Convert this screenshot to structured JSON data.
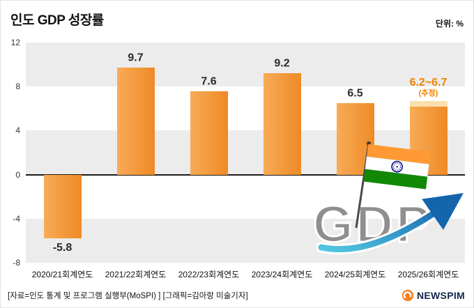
{
  "header": {
    "title": "인도 GDP 성장률",
    "unit_label": "단위: %"
  },
  "chart_data": {
    "type": "bar",
    "title": "인도 GDP 성장률",
    "unit": "%",
    "ylim": [
      -8,
      12
    ],
    "yticks": [
      12,
      8,
      4,
      0,
      -4,
      -8
    ],
    "grid": "horizontal-bands",
    "categories": [
      "2020/21회계연도",
      "2021/22회계연도",
      "2022/23회계연도",
      "2023/24회계연도",
      "2024/25회계연도",
      "2025/26회계연도"
    ],
    "bars": [
      {
        "category": "2020/21회계연도",
        "value": -5.8,
        "label": "-5.8"
      },
      {
        "category": "2021/22회계연도",
        "value": 9.7,
        "label": "9.7"
      },
      {
        "category": "2022/23회계연도",
        "value": 7.6,
        "label": "7.6"
      },
      {
        "category": "2023/24회계연도",
        "value": 9.2,
        "label": "9.2"
      },
      {
        "category": "2024/25회계연도",
        "value": 6.5,
        "label": "6.5"
      },
      {
        "category": "2025/26회계연도",
        "value": 6.2,
        "value_high": 6.7,
        "label": "6.2~6.7",
        "sublabel": "(추정)",
        "estimated": true
      }
    ]
  },
  "colors": {
    "bar_start": "#f8ab57",
    "bar_end": "#ee8a26",
    "bar_estimate": "#fbe0ae",
    "label": "#2b2b2b",
    "accent": "#ef8200",
    "stripe": "#ececec",
    "zero_line": "#1a1a1a",
    "flag_saffron": "#FF9933",
    "flag_green": "#128807",
    "flag_navy": "#000088",
    "arrow_start": "#53c6e0",
    "arrow_end": "#1565ad",
    "logo_orange": "#f58220"
  },
  "decor": {
    "gdp_text": "GDP"
  },
  "footer": {
    "source": "[자료=인도 통계 및 프로그램 실행부(MoSPI) ] [그래픽=김아랑 미술기자]",
    "logo_text": "NEWSPIM"
  }
}
